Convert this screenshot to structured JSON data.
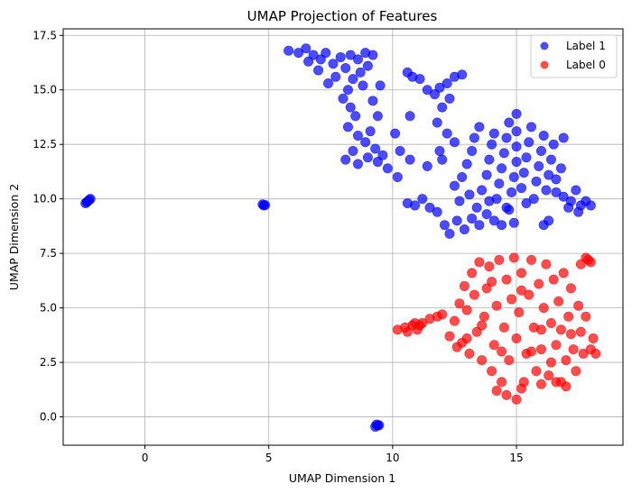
{
  "chart_data": {
    "type": "scatter",
    "title": "UMAP Projection of Features",
    "xlabel": "UMAP Dimension 1",
    "ylabel": "UMAP Dimension 2",
    "xlim": [
      -3.3,
      19.3
    ],
    "ylim": [
      -1.3,
      17.8
    ],
    "xticks": [
      0,
      5,
      10,
      15
    ],
    "xtick_labels": [
      "0",
      "5",
      "10",
      "15"
    ],
    "yticks": [
      0.0,
      2.5,
      5.0,
      7.5,
      10.0,
      12.5,
      15.0,
      17.5
    ],
    "ytick_labels": [
      "0.0",
      "2.5",
      "5.0",
      "7.5",
      "10.0",
      "12.5",
      "15.0",
      "17.5"
    ],
    "grid": true,
    "legend_position": "top-right",
    "series": [
      {
        "name": "Label 1",
        "color": "#0000ff",
        "alpha": 0.7,
        "points": [
          [
            -2.4,
            9.8
          ],
          [
            -2.3,
            9.9
          ],
          [
            -2.2,
            10.0
          ],
          [
            -2.35,
            9.85
          ],
          [
            -2.25,
            9.95
          ],
          [
            4.8,
            9.7
          ],
          [
            4.75,
            9.75
          ],
          [
            4.85,
            9.72
          ],
          [
            9.4,
            -0.4
          ],
          [
            9.3,
            -0.45
          ],
          [
            9.35,
            -0.35
          ],
          [
            9.45,
            -0.38
          ],
          [
            5.8,
            16.8
          ],
          [
            6.2,
            16.7
          ],
          [
            6.5,
            16.9
          ],
          [
            6.8,
            16.6
          ],
          [
            7.1,
            16.4
          ],
          [
            7.3,
            16.7
          ],
          [
            7.6,
            16.2
          ],
          [
            7.9,
            16.5
          ],
          [
            8.1,
            16.0
          ],
          [
            8.3,
            16.6
          ],
          [
            8.6,
            16.4
          ],
          [
            8.9,
            16.7
          ],
          [
            9.2,
            16.6
          ],
          [
            9.0,
            16.1
          ],
          [
            8.7,
            15.8
          ],
          [
            8.4,
            15.5
          ],
          [
            8.2,
            15.0
          ],
          [
            8.0,
            14.6
          ],
          [
            8.3,
            14.2
          ],
          [
            8.5,
            13.8
          ],
          [
            8.2,
            13.3
          ],
          [
            8.6,
            12.9
          ],
          [
            8.9,
            12.6
          ],
          [
            8.4,
            12.2
          ],
          [
            8.1,
            11.8
          ],
          [
            8.6,
            11.6
          ],
          [
            9.0,
            11.9
          ],
          [
            9.3,
            12.3
          ],
          [
            9.6,
            12.0
          ],
          [
            9.8,
            11.4
          ],
          [
            9.4,
            11.7
          ],
          [
            9.1,
            13.1
          ],
          [
            9.4,
            13.8
          ],
          [
            9.2,
            14.5
          ],
          [
            9.5,
            15.2
          ],
          [
            7.7,
            15.6
          ],
          [
            7.4,
            15.3
          ],
          [
            7.0,
            15.9
          ],
          [
            6.6,
            16.3
          ],
          [
            8.8,
            15.2
          ],
          [
            10.6,
            15.8
          ],
          [
            10.8,
            15.6
          ],
          [
            11.1,
            15.5
          ],
          [
            11.4,
            15.0
          ],
          [
            11.7,
            14.8
          ],
          [
            11.9,
            15.1
          ],
          [
            12.2,
            15.3
          ],
          [
            12.5,
            15.6
          ],
          [
            12.8,
            15.7
          ],
          [
            12.3,
            14.6
          ],
          [
            12.0,
            14.2
          ],
          [
            11.8,
            13.5
          ],
          [
            12.2,
            13.0
          ],
          [
            12.5,
            12.6
          ],
          [
            11.9,
            12.2
          ],
          [
            12.0,
            11.8
          ],
          [
            11.4,
            11.5
          ],
          [
            10.7,
            13.8
          ],
          [
            10.1,
            13.0
          ],
          [
            10.3,
            12.2
          ],
          [
            10.7,
            11.8
          ],
          [
            10.2,
            11.0
          ],
          [
            10.6,
            9.8
          ],
          [
            10.9,
            9.7
          ],
          [
            11.2,
            10.0
          ],
          [
            11.5,
            9.6
          ],
          [
            11.8,
            9.4
          ],
          [
            12.1,
            8.8
          ],
          [
            12.3,
            8.4
          ],
          [
            12.6,
            9.0
          ],
          [
            12.9,
            8.6
          ],
          [
            13.2,
            9.1
          ],
          [
            13.5,
            8.8
          ],
          [
            13.8,
            9.3
          ],
          [
            14.1,
            9.0
          ],
          [
            14.4,
            8.8
          ],
          [
            14.7,
            9.5
          ],
          [
            14.9,
            8.9
          ],
          [
            12.8,
            11.0
          ],
          [
            13.0,
            11.6
          ],
          [
            13.2,
            12.2
          ],
          [
            13.3,
            12.8
          ],
          [
            13.5,
            13.3
          ],
          [
            13.6,
            10.4
          ],
          [
            13.8,
            11.1
          ],
          [
            13.9,
            11.8
          ],
          [
            14.0,
            12.5
          ],
          [
            14.1,
            13.0
          ],
          [
            14.2,
            10.0
          ],
          [
            14.3,
            10.7
          ],
          [
            14.4,
            11.4
          ],
          [
            14.5,
            12.1
          ],
          [
            14.6,
            12.8
          ],
          [
            14.7,
            13.5
          ],
          [
            14.8,
            10.3
          ],
          [
            14.9,
            11.0
          ],
          [
            15.0,
            11.7
          ],
          [
            15.0,
            12.4
          ],
          [
            15.0,
            13.1
          ],
          [
            15.0,
            13.9
          ],
          [
            15.2,
            10.5
          ],
          [
            15.3,
            11.2
          ],
          [
            15.4,
            11.9
          ],
          [
            15.5,
            12.6
          ],
          [
            15.6,
            13.3
          ],
          [
            15.7,
            10.0
          ],
          [
            15.8,
            10.8
          ],
          [
            15.9,
            11.5
          ],
          [
            16.0,
            12.2
          ],
          [
            16.1,
            12.9
          ],
          [
            16.2,
            10.4
          ],
          [
            16.3,
            11.1
          ],
          [
            16.4,
            11.8
          ],
          [
            16.5,
            12.5
          ],
          [
            16.6,
            10.9
          ],
          [
            16.8,
            11.4
          ],
          [
            16.9,
            12.8
          ],
          [
            13.4,
            9.6
          ],
          [
            13.1,
            10.2
          ],
          [
            12.7,
            9.9
          ],
          [
            12.5,
            10.6
          ],
          [
            13.9,
            9.9
          ],
          [
            14.6,
            9.6
          ],
          [
            15.4,
            9.8
          ],
          [
            16.6,
            10.3
          ],
          [
            16.9,
            10.1
          ],
          [
            17.2,
            9.9
          ],
          [
            17.4,
            10.4
          ],
          [
            17.6,
            9.7
          ],
          [
            17.8,
            9.9
          ],
          [
            18.0,
            9.7
          ],
          [
            17.5,
            9.4
          ],
          [
            17.1,
            9.6
          ],
          [
            16.3,
            9.0
          ],
          [
            16.1,
            8.8
          ]
        ]
      },
      {
        "name": "Label 0",
        "color": "#ff0000",
        "alpha": 0.7,
        "points": [
          [
            10.2,
            4.0
          ],
          [
            10.5,
            4.1
          ],
          [
            10.8,
            4.2
          ],
          [
            11.0,
            4.0
          ],
          [
            11.2,
            4.3
          ],
          [
            11.5,
            4.5
          ],
          [
            11.8,
            4.6
          ],
          [
            12.0,
            4.7
          ],
          [
            10.6,
            3.9
          ],
          [
            10.9,
            4.3
          ],
          [
            11.1,
            4.2
          ],
          [
            12.3,
            3.7
          ],
          [
            12.5,
            4.4
          ],
          [
            12.7,
            5.2
          ],
          [
            12.8,
            3.4
          ],
          [
            12.9,
            6.0
          ],
          [
            13.0,
            4.9
          ],
          [
            13.1,
            2.9
          ],
          [
            13.2,
            6.6
          ],
          [
            13.3,
            5.6
          ],
          [
            13.4,
            3.9
          ],
          [
            13.5,
            7.1
          ],
          [
            13.6,
            2.6
          ],
          [
            13.7,
            4.6
          ],
          [
            13.8,
            5.9
          ],
          [
            13.9,
            6.9
          ],
          [
            14.0,
            2.1
          ],
          [
            14.1,
            3.3
          ],
          [
            14.2,
            5.1
          ],
          [
            14.3,
            7.2
          ],
          [
            14.4,
            1.6
          ],
          [
            14.5,
            4.1
          ],
          [
            14.6,
            6.3
          ],
          [
            14.7,
            2.6
          ],
          [
            14.8,
            5.4
          ],
          [
            14.9,
            7.3
          ],
          [
            15.0,
            0.8
          ],
          [
            15.0,
            3.6
          ],
          [
            15.1,
            4.8
          ],
          [
            15.2,
            6.6
          ],
          [
            15.3,
            1.6
          ],
          [
            15.4,
            2.9
          ],
          [
            15.5,
            5.6
          ],
          [
            15.6,
            7.2
          ],
          [
            15.7,
            4.1
          ],
          [
            15.8,
            2.1
          ],
          [
            15.9,
            6.1
          ],
          [
            16.0,
            3.1
          ],
          [
            16.1,
            5.0
          ],
          [
            16.2,
            7.0
          ],
          [
            16.3,
            1.9
          ],
          [
            16.4,
            4.3
          ],
          [
            16.5,
            6.3
          ],
          [
            16.6,
            3.3
          ],
          [
            16.7,
            5.3
          ],
          [
            16.8,
            1.6
          ],
          [
            16.9,
            6.6
          ],
          [
            17.0,
            2.6
          ],
          [
            17.1,
            4.6
          ],
          [
            17.2,
            5.9
          ],
          [
            17.3,
            3.1
          ],
          [
            17.4,
            2.1
          ],
          [
            17.5,
            5.1
          ],
          [
            17.6,
            3.9
          ],
          [
            17.7,
            2.9
          ],
          [
            17.8,
            4.6
          ],
          [
            17.9,
            7.2
          ],
          [
            18.0,
            3.1
          ],
          [
            18.1,
            3.6
          ],
          [
            18.2,
            2.9
          ],
          [
            14.2,
            1.2
          ],
          [
            14.6,
            1.0
          ],
          [
            15.2,
            1.3
          ],
          [
            16.0,
            1.5
          ],
          [
            16.6,
            1.6
          ],
          [
            17.0,
            1.4
          ],
          [
            14.4,
            3.0
          ],
          [
            15.6,
            3.0
          ],
          [
            16.4,
            2.5
          ],
          [
            13.6,
            4.2
          ],
          [
            14.0,
            6.2
          ],
          [
            15.2,
            5.8
          ],
          [
            16.0,
            4.0
          ],
          [
            16.8,
            4.0
          ],
          [
            17.2,
            3.8
          ],
          [
            13.0,
            3.6
          ],
          [
            12.6,
            3.2
          ],
          [
            17.6,
            7.0
          ],
          [
            17.8,
            7.3
          ],
          [
            18.0,
            7.1
          ]
        ]
      }
    ]
  }
}
